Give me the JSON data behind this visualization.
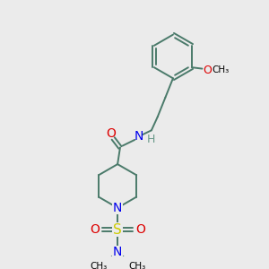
{
  "bg_color": "#ebebeb",
  "bond_color": "#4a7a6a",
  "N_color": "#0000ee",
  "O_color": "#dd0000",
  "S_color": "#cccc00",
  "H_color": "#6a9a8a",
  "figsize": [
    3.0,
    3.0
  ],
  "dpi": 100,
  "xlim": [
    0,
    10
  ],
  "ylim": [
    0,
    10
  ]
}
